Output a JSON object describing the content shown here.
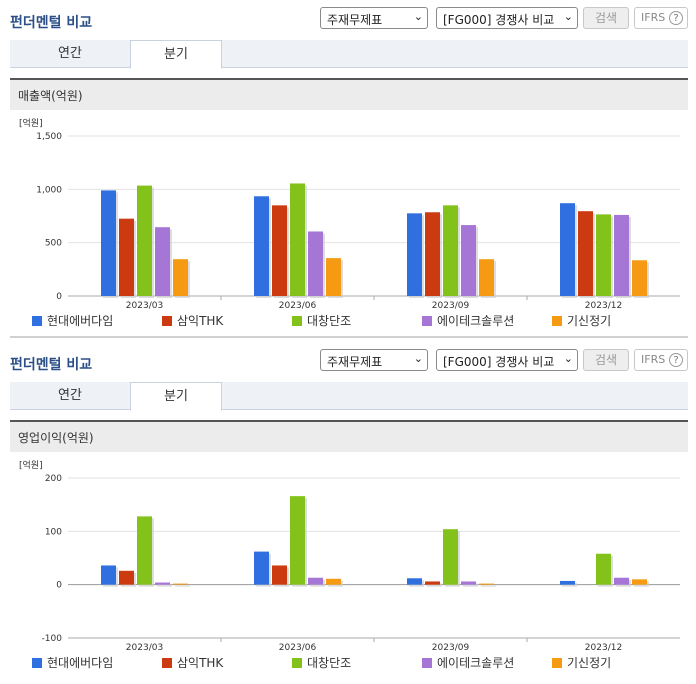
{
  "header": {
    "title": "펀더멘털 비교",
    "select_statement": "주재무제표",
    "select_compare": "[FG000] 경쟁사 비교",
    "search_label": "검색",
    "ifrs_label": "IFRS",
    "help_glyph": "?"
  },
  "tabs": [
    {
      "label": "연간",
      "active": false
    },
    {
      "label": "분기",
      "active": true
    }
  ],
  "colors": {
    "series": [
      "#2f6fe0",
      "#cc3a12",
      "#83c21a",
      "#a676d6",
      "#f59a12"
    ]
  },
  "chart_data": [
    {
      "type": "bar",
      "title": "매출액(억원)",
      "unit_label": "[억원]",
      "categories": [
        "2023/03",
        "2023/06",
        "2023/09",
        "2023/12"
      ],
      "ylim": [
        0,
        1500
      ],
      "yticks": [
        "0",
        "500",
        "1,000",
        "1,500"
      ],
      "ytick_values": [
        0,
        500,
        1000,
        1500
      ],
      "series": [
        {
          "name": "현대에버다임",
          "values": [
            990,
            935,
            775,
            870
          ]
        },
        {
          "name": "삼익THK",
          "values": [
            725,
            850,
            785,
            795
          ]
        },
        {
          "name": "대창단조",
          "values": [
            1035,
            1055,
            850,
            765
          ]
        },
        {
          "name": "에이테크솔루션",
          "values": [
            645,
            605,
            665,
            760
          ]
        },
        {
          "name": "기신정기",
          "values": [
            345,
            355,
            345,
            335
          ]
        }
      ]
    },
    {
      "type": "bar",
      "title": "영업이익(억원)",
      "unit_label": "[억원]",
      "categories": [
        "2023/03",
        "2023/06",
        "2023/09",
        "2023/12"
      ],
      "ylim": [
        -100,
        200
      ],
      "yticks": [
        "-100",
        "0",
        "100",
        "200"
      ],
      "ytick_values": [
        -100,
        0,
        100,
        200
      ],
      "series": [
        {
          "name": "현대에버다임",
          "values": [
            36,
            62,
            12,
            7
          ]
        },
        {
          "name": "삼익THK",
          "values": [
            26,
            36,
            6,
            0
          ]
        },
        {
          "name": "대창단조",
          "values": [
            128,
            166,
            104,
            58
          ]
        },
        {
          "name": "에이테크솔루션",
          "values": [
            4,
            13,
            6,
            13
          ]
        },
        {
          "name": "기신정기",
          "values": [
            2,
            11,
            2,
            10
          ]
        }
      ]
    }
  ]
}
